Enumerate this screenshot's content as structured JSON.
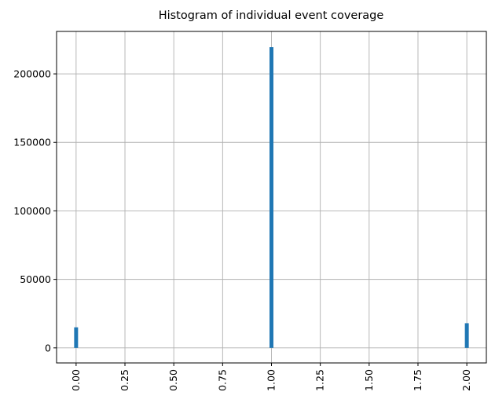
{
  "chart_data": {
    "type": "bar",
    "title": "Histogram of individual event coverage",
    "xlabel": "",
    "ylabel": "",
    "xlim": [
      -0.1,
      2.1
    ],
    "ylim": [
      -11000,
      231000
    ],
    "grid": true,
    "bar_width": 0.02,
    "bars": [
      {
        "x": 0.0,
        "count": 15000
      },
      {
        "x": 1.0,
        "count": 219500
      },
      {
        "x": 2.0,
        "count": 18000
      }
    ],
    "x_ticks": [
      0.0,
      0.25,
      0.5,
      0.75,
      1.0,
      1.25,
      1.5,
      1.75,
      2.0
    ],
    "x_tick_labels": [
      "0.00",
      "0.25",
      "0.50",
      "0.75",
      "1.00",
      "1.25",
      "1.50",
      "1.75",
      "2.00"
    ],
    "y_ticks": [
      0,
      50000,
      100000,
      150000,
      200000
    ],
    "y_tick_labels": [
      "0",
      "50000",
      "100000",
      "150000",
      "200000"
    ],
    "colors": {
      "bar": "#1f77b4",
      "grid": "#b0b0b0",
      "axis": "#000000"
    }
  }
}
